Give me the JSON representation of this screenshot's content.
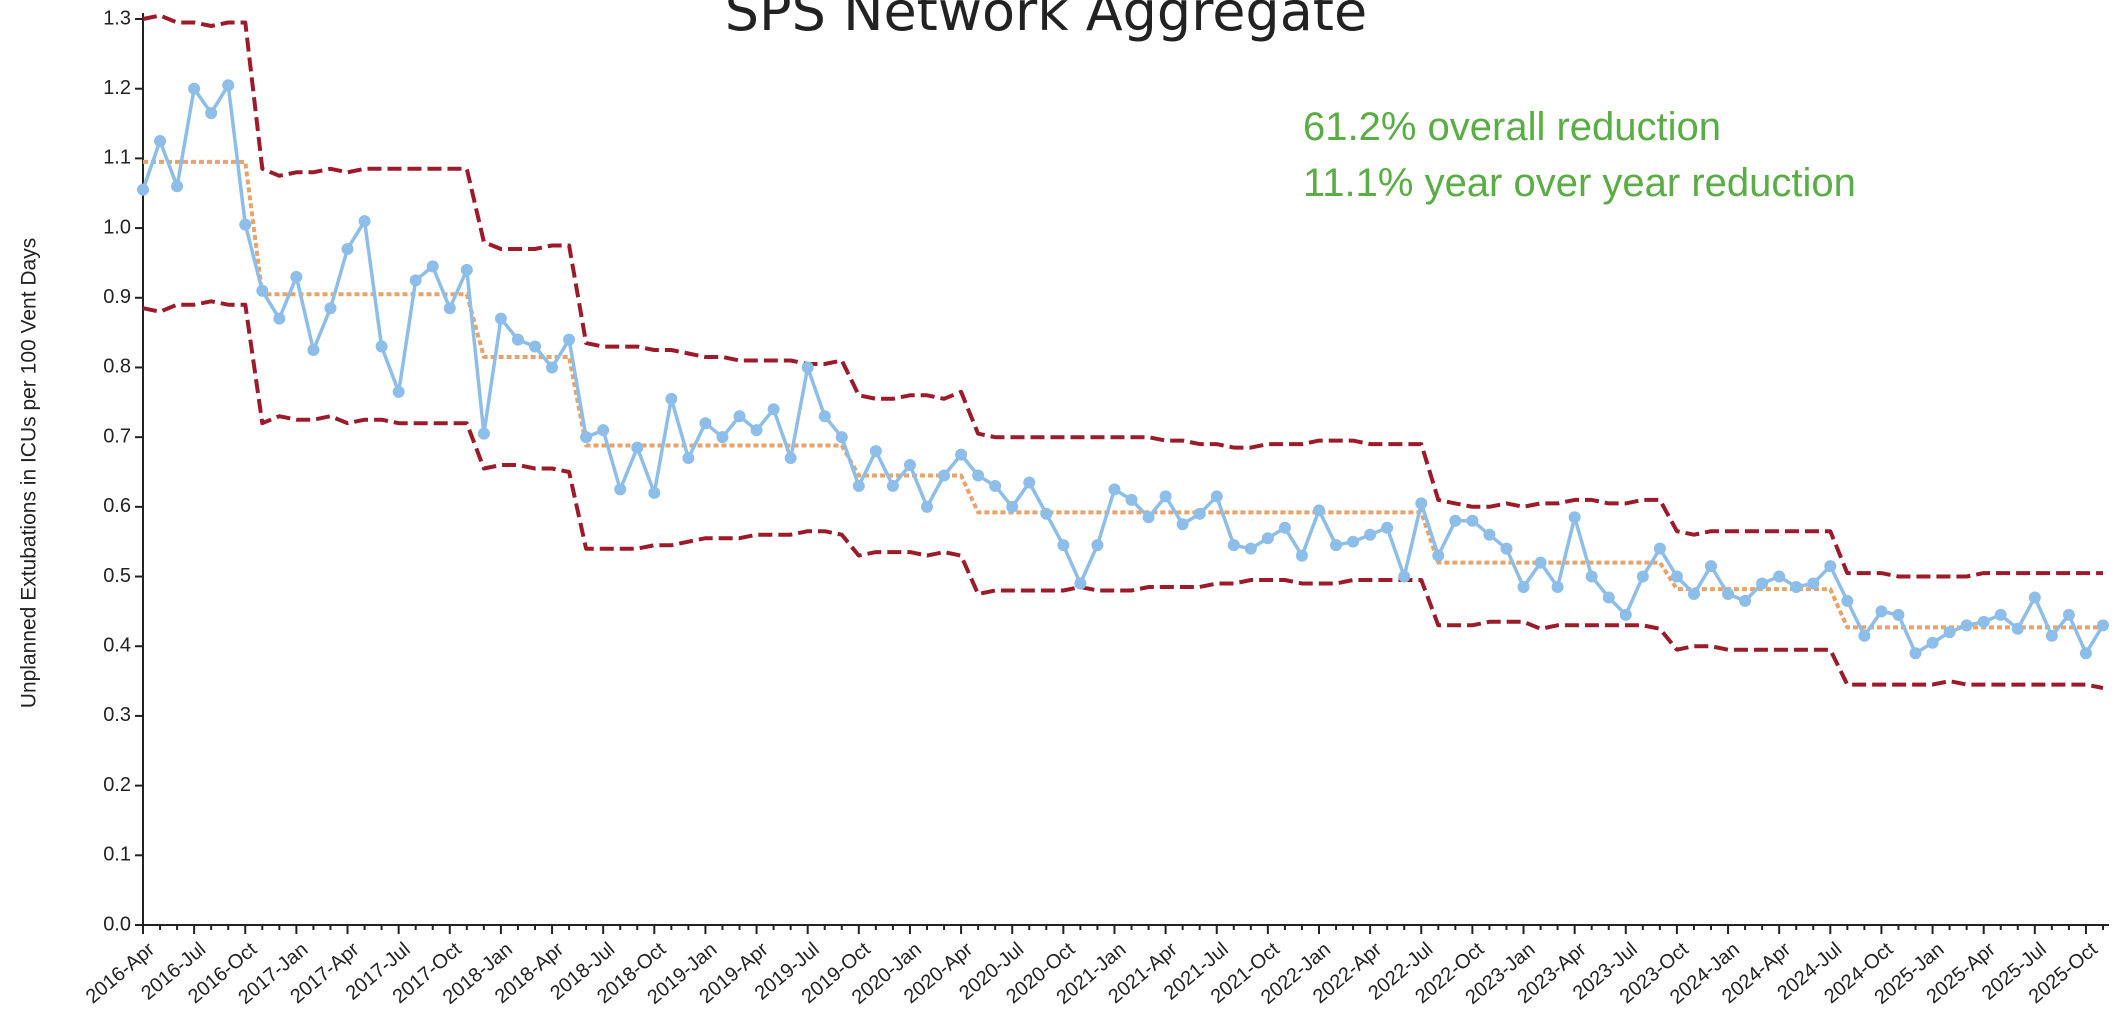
{
  "chart_data": {
    "type": "line",
    "title": "SPS Network Aggregate",
    "y_label": "Unplanned Extubations in ICUs per 100 Vent Days",
    "annotations": [
      "61.2% overall reduction",
      "11.1% year over year reduction"
    ],
    "categories": [
      "2016-Apr",
      null,
      null,
      "2016-Jul",
      null,
      null,
      "2016-Oct",
      null,
      null,
      "2017-Jan",
      null,
      null,
      "2017-Apr",
      null,
      null,
      "2017-Jul",
      null,
      null,
      "2017-Oct",
      null,
      null,
      "2018-Jan",
      null,
      null,
      "2018-Apr",
      null,
      null,
      "2018-Jul",
      null,
      null,
      "2018-Oct",
      null,
      null,
      "2019-Jan",
      null,
      null,
      "2019-Apr",
      null,
      null,
      "2019-Jul",
      null,
      null,
      "2019-Oct",
      null,
      null,
      "2020-Jan",
      null,
      null,
      "2020-Apr",
      null,
      null,
      "2020-Jul",
      null,
      null,
      "2020-Oct",
      null,
      null,
      "2021-Jan",
      null,
      null,
      "2021-Apr",
      null,
      null,
      "2021-Jul",
      null,
      null,
      "2021-Oct",
      null,
      null,
      "2022-Jan",
      null,
      null,
      "2022-Apr",
      null,
      null,
      "2022-Jul",
      null,
      null,
      "2022-Oct",
      null,
      null,
      "2023-Jan",
      null,
      null,
      "2023-Apr",
      null,
      null,
      "2023-Jul",
      null,
      null,
      "2023-Oct",
      null,
      null,
      "2024-Jan",
      null,
      null,
      "2024-Apr",
      null,
      null,
      "2024-Jul",
      null,
      null,
      "2024-Oct",
      null,
      null,
      "2025-Jan",
      null,
      null,
      "2025-Apr",
      null,
      null,
      "2025-Jul",
      null,
      null,
      "2025-Oct",
      null
    ],
    "series": [
      {
        "color": "#e8a36a",
        "line_style": "dotted",
        "markers": false,
        "values": [
          1.095,
          1.095,
          1.095,
          1.095,
          1.095,
          1.095,
          1.095,
          0.905,
          0.905,
          0.905,
          0.905,
          0.905,
          0.905,
          0.905,
          0.905,
          0.905,
          0.905,
          0.905,
          0.905,
          0.905,
          0.815,
          0.815,
          0.815,
          0.815,
          0.815,
          0.815,
          0.688,
          0.688,
          0.688,
          0.688,
          0.688,
          0.688,
          0.688,
          0.688,
          0.688,
          0.688,
          0.688,
          0.688,
          0.688,
          0.688,
          0.688,
          0.688,
          0.645,
          0.645,
          0.645,
          0.645,
          0.645,
          0.645,
          0.645,
          0.592,
          0.592,
          0.592,
          0.592,
          0.592,
          0.592,
          0.592,
          0.592,
          0.592,
          0.592,
          0.592,
          0.592,
          0.592,
          0.592,
          0.592,
          0.592,
          0.592,
          0.592,
          0.592,
          0.592,
          0.592,
          0.592,
          0.592,
          0.592,
          0.592,
          0.592,
          0.592,
          0.52,
          0.52,
          0.52,
          0.52,
          0.52,
          0.52,
          0.52,
          0.52,
          0.52,
          0.52,
          0.52,
          0.52,
          0.52,
          0.52,
          0.482,
          0.482,
          0.482,
          0.482,
          0.482,
          0.482,
          0.482,
          0.482,
          0.482,
          0.482,
          0.427,
          0.427,
          0.427,
          0.427,
          0.427,
          0.427,
          0.427,
          0.427,
          0.427,
          0.427,
          0.427,
          0.427,
          0.427,
          0.427,
          0.427,
          0.427
        ]
      },
      {
        "color": "#9b1b2a",
        "line_style": "dashed",
        "markers": false,
        "values": [
          1.3,
          1.305,
          1.295,
          1.295,
          1.29,
          1.295,
          1.295,
          1.085,
          1.075,
          1.08,
          1.08,
          1.085,
          1.08,
          1.085,
          1.085,
          1.085,
          1.085,
          1.085,
          1.085,
          1.085,
          0.98,
          0.97,
          0.97,
          0.97,
          0.975,
          0.975,
          0.835,
          0.83,
          0.83,
          0.83,
          0.825,
          0.825,
          0.82,
          0.815,
          0.815,
          0.81,
          0.81,
          0.81,
          0.81,
          0.805,
          0.805,
          0.81,
          0.76,
          0.755,
          0.755,
          0.76,
          0.76,
          0.755,
          0.765,
          0.705,
          0.7,
          0.7,
          0.7,
          0.7,
          0.7,
          0.7,
          0.7,
          0.7,
          0.7,
          0.7,
          0.695,
          0.695,
          0.69,
          0.69,
          0.685,
          0.685,
          0.69,
          0.69,
          0.69,
          0.695,
          0.695,
          0.695,
          0.69,
          0.69,
          0.69,
          0.69,
          0.61,
          0.605,
          0.6,
          0.6,
          0.605,
          0.6,
          0.605,
          0.605,
          0.61,
          0.61,
          0.605,
          0.605,
          0.61,
          0.61,
          0.565,
          0.56,
          0.565,
          0.565,
          0.565,
          0.565,
          0.565,
          0.565,
          0.565,
          0.565,
          0.505,
          0.505,
          0.505,
          0.5,
          0.5,
          0.5,
          0.5,
          0.5,
          0.505,
          0.505,
          0.505,
          0.505,
          0.505,
          0.505,
          0.505,
          0.505
        ]
      },
      {
        "color": "#9b1b2a",
        "line_style": "dashed",
        "markers": false,
        "values": [
          0.885,
          0.88,
          0.89,
          0.89,
          0.895,
          0.89,
          0.89,
          0.72,
          0.73,
          0.725,
          0.725,
          0.73,
          0.72,
          0.725,
          0.725,
          0.72,
          0.72,
          0.72,
          0.72,
          0.72,
          0.655,
          0.66,
          0.66,
          0.655,
          0.655,
          0.65,
          0.54,
          0.54,
          0.54,
          0.54,
          0.545,
          0.545,
          0.55,
          0.555,
          0.555,
          0.555,
          0.56,
          0.56,
          0.56,
          0.565,
          0.565,
          0.56,
          0.53,
          0.535,
          0.535,
          0.535,
          0.53,
          0.535,
          0.53,
          0.475,
          0.48,
          0.48,
          0.48,
          0.48,
          0.48,
          0.485,
          0.48,
          0.48,
          0.48,
          0.485,
          0.485,
          0.485,
          0.485,
          0.49,
          0.49,
          0.495,
          0.495,
          0.495,
          0.49,
          0.49,
          0.49,
          0.495,
          0.495,
          0.495,
          0.495,
          0.495,
          0.43,
          0.43,
          0.43,
          0.435,
          0.435,
          0.435,
          0.425,
          0.43,
          0.43,
          0.43,
          0.43,
          0.43,
          0.43,
          0.425,
          0.395,
          0.4,
          0.4,
          0.395,
          0.395,
          0.395,
          0.395,
          0.395,
          0.395,
          0.395,
          0.345,
          0.345,
          0.345,
          0.345,
          0.345,
          0.345,
          0.35,
          0.345,
          0.345,
          0.345,
          0.345,
          0.345,
          0.345,
          0.345,
          0.345,
          0.34
        ]
      },
      {
        "color": "#8dbde9",
        "line_style": "solid",
        "markers": true,
        "values": [
          1.055,
          1.125,
          1.06,
          1.2,
          1.165,
          1.205,
          1.005,
          0.91,
          0.87,
          0.93,
          0.825,
          0.885,
          0.97,
          1.01,
          0.83,
          0.765,
          0.925,
          0.945,
          0.885,
          0.94,
          0.705,
          0.87,
          0.84,
          0.83,
          0.8,
          0.84,
          0.7,
          0.71,
          0.625,
          0.685,
          0.62,
          0.755,
          0.67,
          0.72,
          0.7,
          0.73,
          0.71,
          0.74,
          0.67,
          0.8,
          0.73,
          0.7,
          0.63,
          0.68,
          0.63,
          0.66,
          0.6,
          0.645,
          0.675,
          0.645,
          0.63,
          0.6,
          0.635,
          0.59,
          0.545,
          0.49,
          0.545,
          0.625,
          0.61,
          0.585,
          0.615,
          0.575,
          0.59,
          0.615,
          0.545,
          0.54,
          0.555,
          0.57,
          0.53,
          0.595,
          0.545,
          0.55,
          0.56,
          0.57,
          0.5,
          0.605,
          0.53,
          0.58,
          0.58,
          0.56,
          0.54,
          0.485,
          0.52,
          0.485,
          0.585,
          0.5,
          0.47,
          0.445,
          0.5,
          0.54,
          0.5,
          0.475,
          0.515,
          0.475,
          0.465,
          0.49,
          0.5,
          0.485,
          0.49,
          0.515,
          0.465,
          0.415,
          0.45,
          0.445,
          0.39,
          0.405,
          0.42,
          0.43,
          0.435,
          0.445,
          0.425,
          0.47,
          0.415,
          0.445,
          0.39,
          0.43
        ]
      }
    ],
    "ylim": [
      0,
      1.3
    ],
    "yticks": [
      {
        "value": 0,
        "label": "0.0"
      },
      0.1,
      0.2,
      0.3,
      0.4,
      0.5,
      0.6,
      0.7,
      0.8,
      0.9,
      {
        "value": 1,
        "label": "1.0"
      },
      1.1,
      1.2,
      1.3
    ],
    "grid": false
  }
}
